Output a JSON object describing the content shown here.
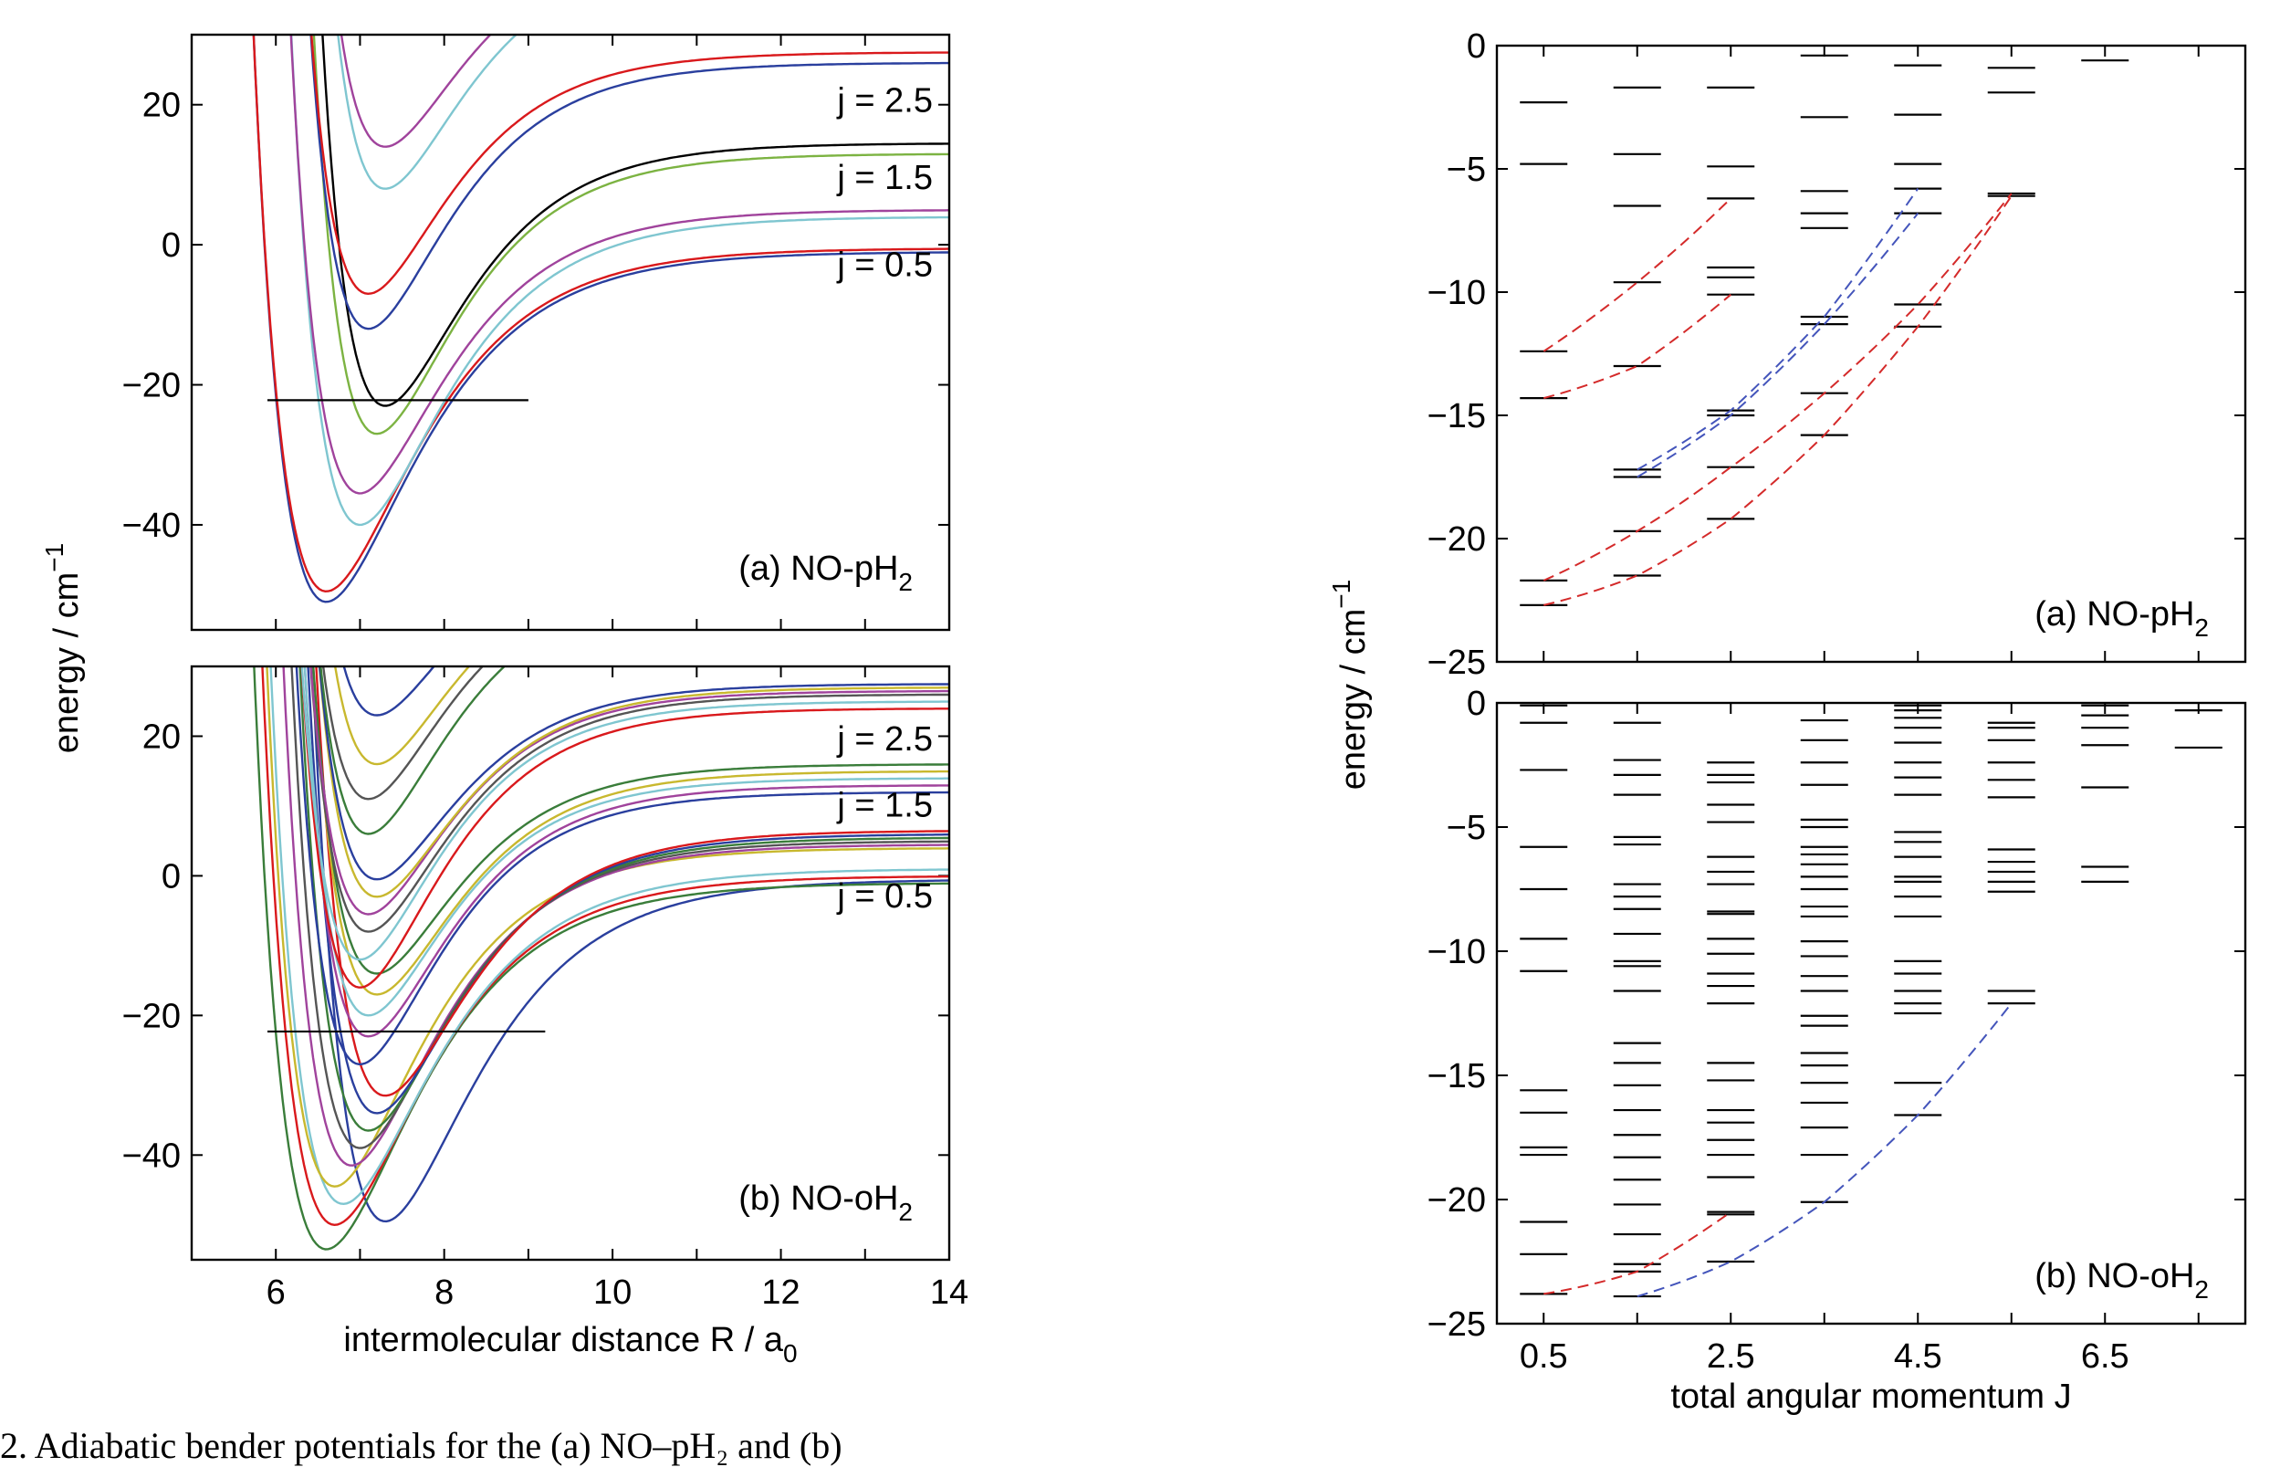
{
  "caption": "2. Adiabatic bender potentials for the (a) NO–pH₂ and (b)",
  "colors": {
    "blue": "#2a3f9e",
    "red": "#d9191c",
    "magenta": "#a0439c",
    "cyan": "#7fc6d0",
    "green": "#7cb342",
    "black": "#000000",
    "olive": "#c8b82e",
    "darkgreen": "#3a7d3a",
    "grey": "#555555",
    "dashed_red": "#d42a2a",
    "dashed_blue": "#4455bb"
  },
  "chart_data": [
    {
      "type": "line",
      "panel_label": "(a) NO-pH",
      "panel_sub": "2",
      "xlim": [
        5,
        14
      ],
      "ylim": [
        -55,
        30
      ],
      "xticks": [],
      "yticks": [
        20,
        0,
        -20,
        -40
      ],
      "xlabel": "",
      "ylabel": "energy / cm",
      "ylabel_sup": "−1",
      "annotations": [
        "j = 2.5",
        "j = 1.5",
        "j = 0.5"
      ],
      "annotation_y": [
        19,
        8,
        -4.5
      ],
      "hline": {
        "y": -22.2,
        "x": [
          5.9,
          9.0
        ]
      },
      "series": [
        {
          "De": 50,
          "Re": 6.6,
          "a": 0.95,
          "E": -1,
          "color": "blue"
        },
        {
          "De": 49,
          "Re": 6.6,
          "a": 0.95,
          "E": -0.5,
          "color": "red"
        },
        {
          "De": 44,
          "Re": 7.0,
          "a": 1.0,
          "E": 4,
          "color": "cyan"
        },
        {
          "De": 40.5,
          "Re": 7.0,
          "a": 1.0,
          "E": 5,
          "color": "magenta"
        },
        {
          "De": 40,
          "Re": 7.2,
          "a": 1.05,
          "E": 13,
          "color": "green"
        },
        {
          "De": 37.5,
          "Re": 7.3,
          "a": 1.05,
          "E": 14.5,
          "color": "black"
        },
        {
          "De": 38,
          "Re": 7.1,
          "a": 1.05,
          "E": 26,
          "color": "blue"
        },
        {
          "De": 34.5,
          "Re": 7.1,
          "a": 1.05,
          "E": 27.5,
          "color": "red"
        },
        {
          "De": 34,
          "Re": 7.3,
          "a": 1.05,
          "E": 42,
          "color": "cyan"
        },
        {
          "De": 30,
          "Re": 7.3,
          "a": 1.05,
          "E": 44,
          "color": "magenta"
        }
      ]
    },
    {
      "type": "line",
      "panel_label": "(b) NO-oH",
      "panel_sub": "2",
      "xlim": [
        5,
        14
      ],
      "ylim": [
        -55,
        30
      ],
      "xticks": [
        6,
        8,
        10,
        12,
        14
      ],
      "yticks": [
        20,
        0,
        -20,
        -40
      ],
      "xlabel": "intermolecular distance R / a",
      "xlabel_sub": "0",
      "annotations": [
        "j = 2.5",
        "j = 1.5",
        "j = 0.5"
      ],
      "annotation_y": [
        18,
        8.5,
        -4.5
      ],
      "hline": {
        "y": -22.3,
        "x": [
          5.9,
          9.2
        ]
      },
      "series": [
        {
          "De": 49,
          "Re": 7.3,
          "a": 0.95,
          "E": -0.5,
          "color": "blue"
        },
        {
          "De": 52.5,
          "Re": 6.6,
          "a": 0.95,
          "E": -1,
          "color": "darkgreen"
        },
        {
          "De": 50,
          "Re": 6.7,
          "a": 0.95,
          "E": 0,
          "color": "red"
        },
        {
          "De": 48,
          "Re": 6.8,
          "a": 0.95,
          "E": 1,
          "color": "cyan"
        },
        {
          "De": 48.5,
          "Re": 6.7,
          "a": 1.0,
          "E": 4,
          "color": "olive"
        },
        {
          "De": 46,
          "Re": 6.9,
          "a": 1.0,
          "E": 4.5,
          "color": "magenta"
        },
        {
          "De": 44,
          "Re": 7.0,
          "a": 1.0,
          "E": 5,
          "color": "grey"
        },
        {
          "De": 42,
          "Re": 7.1,
          "a": 1.0,
          "E": 5.5,
          "color": "darkgreen"
        },
        {
          "De": 40,
          "Re": 7.2,
          "a": 1.0,
          "E": 6,
          "color": "blue"
        },
        {
          "De": 38,
          "Re": 7.3,
          "a": 1.0,
          "E": 6.5,
          "color": "red"
        },
        {
          "De": 39,
          "Re": 7.0,
          "a": 1.05,
          "E": 12,
          "color": "blue"
        },
        {
          "De": 36,
          "Re": 7.1,
          "a": 1.05,
          "E": 13,
          "color": "magenta"
        },
        {
          "De": 34,
          "Re": 7.1,
          "a": 1.05,
          "E": 14,
          "color": "cyan"
        },
        {
          "De": 32,
          "Re": 7.2,
          "a": 1.05,
          "E": 15,
          "color": "olive"
        },
        {
          "De": 30,
          "Re": 7.2,
          "a": 1.05,
          "E": 16,
          "color": "darkgreen"
        },
        {
          "De": 40,
          "Re": 7.0,
          "a": 1.05,
          "E": 24,
          "color": "red"
        },
        {
          "De": 37,
          "Re": 7.0,
          "a": 1.05,
          "E": 25,
          "color": "cyan"
        },
        {
          "De": 34,
          "Re": 7.1,
          "a": 1.05,
          "E": 26,
          "color": "grey"
        },
        {
          "De": 32,
          "Re": 7.1,
          "a": 1.05,
          "E": 26.5,
          "color": "magenta"
        },
        {
          "De": 30,
          "Re": 7.2,
          "a": 1.05,
          "E": 27,
          "color": "olive"
        },
        {
          "De": 28,
          "Re": 7.2,
          "a": 1.05,
          "E": 27.5,
          "color": "blue"
        },
        {
          "De": 36,
          "Re": 7.1,
          "a": 1.05,
          "E": 42,
          "color": "darkgreen"
        },
        {
          "De": 33,
          "Re": 7.1,
          "a": 1.05,
          "E": 44,
          "color": "grey"
        },
        {
          "De": 30,
          "Re": 7.2,
          "a": 1.05,
          "E": 46,
          "color": "olive"
        },
        {
          "De": 27,
          "Re": 7.2,
          "a": 1.05,
          "E": 50,
          "color": "blue"
        }
      ]
    },
    {
      "type": "scatter",
      "marker": "hline",
      "panel_label": "(a) NO-pH",
      "panel_sub": "2",
      "xlim": [
        0,
        8
      ],
      "ylim": [
        -25,
        0
      ],
      "xticks": [],
      "yticks": [
        0,
        -5,
        -10,
        -15,
        -20,
        -25
      ],
      "ylabel": "energy / cm",
      "ylabel_sup": "−1",
      "levels": [
        {
          "J": 0.5,
          "E": [
            -2.3,
            -4.8,
            -12.4,
            -14.3,
            -21.7,
            -22.7
          ]
        },
        {
          "J": 1.5,
          "E": [
            -1.7,
            -4.4,
            -6.5,
            -9.6,
            -13.0,
            -17.2,
            -17.5,
            -19.7,
            -21.5
          ]
        },
        {
          "J": 2.5,
          "E": [
            -1.7,
            -4.9,
            -6.2,
            -9.0,
            -9.4,
            -10.1,
            -14.8,
            -15.0,
            -17.1,
            -19.2
          ]
        },
        {
          "J": 3.5,
          "E": [
            -0.4,
            -2.9,
            -5.9,
            -6.8,
            -7.4,
            -11.0,
            -11.3,
            -14.1,
            -15.8
          ]
        },
        {
          "J": 4.5,
          "E": [
            -0.8,
            -2.8,
            -4.8,
            -5.8,
            -6.8,
            -10.5,
            -11.4
          ]
        },
        {
          "J": 5.5,
          "E": [
            -0.9,
            -1.9,
            -6.0,
            -6.1
          ]
        },
        {
          "J": 6.5,
          "E": [
            -0.6
          ]
        }
      ],
      "dashed": [
        {
          "color": "dashed_red",
          "points": [
            [
              0.5,
              -12.4
            ],
            [
              1.5,
              -9.6
            ],
            [
              2.5,
              -6.2
            ]
          ]
        },
        {
          "color": "dashed_red",
          "points": [
            [
              0.5,
              -14.3
            ],
            [
              1.5,
              -13.0
            ],
            [
              2.5,
              -10.1
            ]
          ]
        },
        {
          "color": "dashed_red",
          "points": [
            [
              0.5,
              -21.7
            ],
            [
              1.5,
              -19.7
            ],
            [
              2.5,
              -17.1
            ],
            [
              3.5,
              -14.1
            ],
            [
              4.5,
              -10.5
            ],
            [
              5.5,
              -6.0
            ]
          ]
        },
        {
          "color": "dashed_red",
          "points": [
            [
              0.5,
              -22.7
            ],
            [
              1.5,
              -21.5
            ],
            [
              2.5,
              -19.2
            ],
            [
              3.5,
              -15.8
            ],
            [
              4.5,
              -11.4
            ],
            [
              5.5,
              -6.1
            ]
          ]
        },
        {
          "color": "dashed_blue",
          "points": [
            [
              1.5,
              -17.2
            ],
            [
              2.5,
              -14.8
            ],
            [
              3.5,
              -11.0
            ],
            [
              4.5,
              -5.8
            ]
          ]
        },
        {
          "color": "dashed_blue",
          "points": [
            [
              1.5,
              -17.5
            ],
            [
              2.5,
              -15.0
            ],
            [
              3.5,
              -11.3
            ],
            [
              4.5,
              -6.8
            ]
          ]
        }
      ]
    },
    {
      "type": "scatter",
      "marker": "hline",
      "panel_label": "(b) NO-oH",
      "panel_sub": "2",
      "xlim": [
        0,
        8
      ],
      "ylim": [
        -25,
        0
      ],
      "xticks": [
        0.5,
        2.5,
        4.5,
        6.5
      ],
      "yticks": [
        0,
        -5,
        -10,
        -15,
        -20,
        -25
      ],
      "xlabel": "total angular momentum J",
      "levels": [
        {
          "J": 0.5,
          "E": [
            -0.1,
            -0.8,
            -2.7,
            -5.8,
            -7.5,
            -9.5,
            -10.8,
            -15.6,
            -16.5,
            -17.9,
            -18.2,
            -20.9,
            -22.2,
            -23.8
          ]
        },
        {
          "J": 1.5,
          "E": [
            -0.8,
            -2.3,
            -2.9,
            -3.7,
            -5.4,
            -5.7,
            -7.3,
            -7.8,
            -8.3,
            -9.3,
            -10.4,
            -10.6,
            -11.6,
            -13.7,
            -14.5,
            -15.4,
            -16.4,
            -17.4,
            -18.3,
            -19.2,
            -20.2,
            -21.4,
            -22.6,
            -22.9,
            -23.9
          ]
        },
        {
          "J": 2.5,
          "E": [
            -2.4,
            -2.9,
            -3.2,
            -4.1,
            -4.8,
            -6.2,
            -6.8,
            -7.3,
            -8.4,
            -8.5,
            -9.5,
            -10.1,
            -10.9,
            -11.4,
            -12.1,
            -14.5,
            -15.2,
            -16.4,
            -16.9,
            -17.6,
            -18.2,
            -19.1,
            -20.5,
            -20.6,
            -22.5
          ]
        },
        {
          "J": 3.5,
          "E": [
            -0.7,
            -1.5,
            -2.4,
            -3.3,
            -4.7,
            -5.0,
            -5.8,
            -6.1,
            -6.5,
            -7.0,
            -7.5,
            -8.2,
            -8.6,
            -9.6,
            -10.2,
            -11.0,
            -11.6,
            -12.6,
            -13.0,
            -14.1,
            -14.6,
            -15.3,
            -16.1,
            -17.1,
            -18.2,
            -20.1
          ]
        },
        {
          "J": 4.5,
          "E": [
            -0.1,
            -0.3,
            -0.6,
            -1.0,
            -1.6,
            -2.4,
            -3.0,
            -3.7,
            -5.2,
            -5.6,
            -6.2,
            -7.0,
            -7.2,
            -7.8,
            -8.6,
            -10.4,
            -10.9,
            -11.6,
            -12.1,
            -12.5,
            -15.3,
            -16.6
          ]
        },
        {
          "J": 5.5,
          "E": [
            -0.8,
            -1.0,
            -1.5,
            -2.4,
            -3.1,
            -3.8,
            -5.9,
            -6.4,
            -6.8,
            -7.2,
            -7.6,
            -11.6,
            -12.1
          ]
        },
        {
          "J": 6.5,
          "E": [
            -0.1,
            -0.5,
            -1.0,
            -1.7,
            -3.4,
            -6.6,
            -7.2
          ]
        },
        {
          "J": 7.5,
          "E": [
            -0.3,
            -1.8
          ]
        }
      ],
      "dashed": [
        {
          "color": "dashed_red",
          "points": [
            [
              0.5,
              -23.8
            ],
            [
              1.5,
              -22.9
            ],
            [
              2.5,
              -20.5
            ]
          ]
        },
        {
          "color": "dashed_blue",
          "points": [
            [
              1.5,
              -23.9
            ],
            [
              2.5,
              -22.5
            ],
            [
              3.5,
              -20.1
            ],
            [
              4.5,
              -16.6
            ],
            [
              5.5,
              -12.1
            ]
          ]
        }
      ]
    }
  ]
}
